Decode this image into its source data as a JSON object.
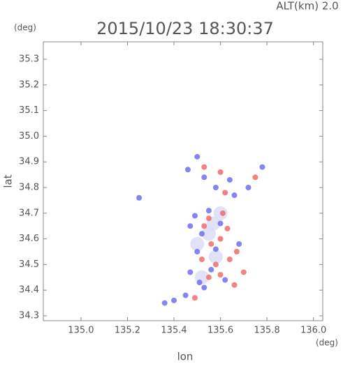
{
  "chart_data": {
    "type": "scatter",
    "title": "2015/10/23 18:30:37",
    "subtitle": "ALT(km) 2.0",
    "y_unit": "(deg)",
    "x_unit": "(deg)",
    "x_label": "lon",
    "y_label": "lat",
    "xlim": [
      134.838,
      136.04
    ],
    "ylim": [
      34.281,
      35.368
    ],
    "xticks": [
      {
        "value": 135.0,
        "label": "135.0"
      },
      135.2,
      135.4,
      135.6,
      135.8,
      {
        "value": 136.0,
        "label": "136.0"
      }
    ],
    "yticks": [
      34.3,
      34.4,
      34.5,
      34.6,
      34.7,
      34.8,
      34.9,
      {
        "value": 35.0,
        "label": "35.0"
      },
      35.1,
      35.2,
      35.3
    ],
    "series": [
      {
        "color": "#dcdcf6",
        "x": [
          135.55,
          135.58,
          135.52,
          135.6,
          135.5,
          135.57
        ],
        "values": [
          34.62,
          34.53,
          34.45,
          34.7,
          34.58,
          34.66
        ]
      },
      {
        "color": "#6e6ef0",
        "x": [
          135.5,
          135.46,
          135.53,
          135.58,
          135.64,
          135.72,
          135.78,
          135.49,
          135.55,
          135.47,
          135.52,
          135.58,
          135.5,
          135.56,
          135.47,
          135.62,
          135.53,
          135.45,
          135.4,
          135.36,
          135.68,
          135.6,
          135.25,
          135.66,
          135.51
        ],
        "values": [
          34.92,
          34.87,
          34.84,
          34.8,
          34.83,
          34.8,
          34.88,
          34.69,
          34.71,
          34.65,
          34.62,
          34.56,
          34.55,
          34.48,
          34.47,
          34.44,
          34.41,
          34.38,
          34.36,
          34.35,
          34.58,
          34.66,
          34.76,
          34.77,
          34.43
        ]
      },
      {
        "color": "#f06c6c",
        "x": [
          135.53,
          135.6,
          135.62,
          135.75,
          135.55,
          135.61,
          135.53,
          135.6,
          135.56,
          135.64,
          135.58,
          135.7,
          135.55,
          135.66,
          135.49,
          135.6,
          135.52,
          135.67,
          135.63
        ],
        "values": [
          34.88,
          34.86,
          34.78,
          34.84,
          34.68,
          34.7,
          34.65,
          34.6,
          34.58,
          34.52,
          34.5,
          34.47,
          34.45,
          34.42,
          34.37,
          34.46,
          34.52,
          34.55,
          34.64
        ]
      }
    ]
  }
}
